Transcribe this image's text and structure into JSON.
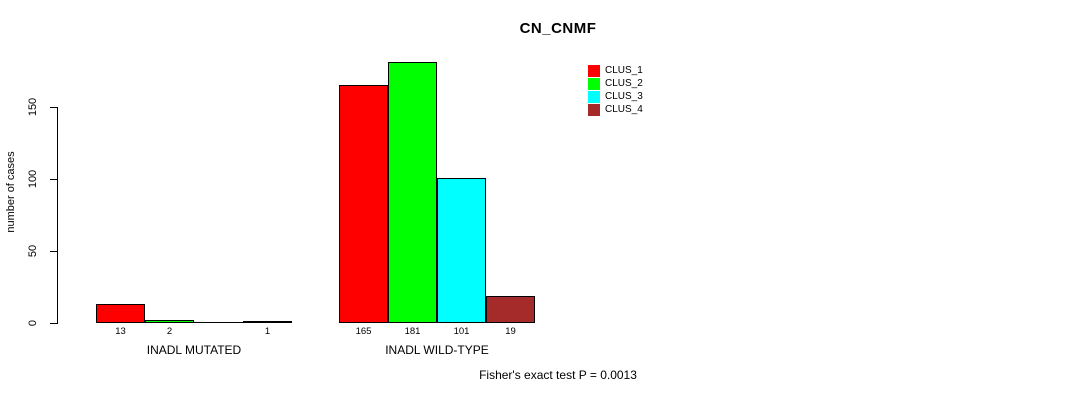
{
  "chart_data": {
    "type": "bar",
    "title": "CN_CNMF",
    "xlabel": "",
    "ylabel": "number of cases",
    "ylim": [
      0,
      187
    ],
    "yticks": [
      0,
      50,
      100,
      150
    ],
    "ytick_labels": [
      "0",
      "50",
      "100",
      "150"
    ],
    "grid": false,
    "legend_position": "top-right-inside",
    "background_color": "#FFFFFF",
    "axis_color": "#000000",
    "bar_border_color": "#000000",
    "series": [
      {
        "name": "CLUS_1",
        "color": "#FF0000"
      },
      {
        "name": "CLUS_2",
        "color": "#00FF00"
      },
      {
        "name": "CLUS_3",
        "color": "#00FFFF"
      },
      {
        "name": "CLUS_4",
        "color": "#A52A2A"
      }
    ],
    "groups": [
      {
        "label": "INADL MUTATED",
        "values": [
          13,
          2,
          0,
          1
        ],
        "value_labels": [
          "13",
          "2",
          "",
          "1"
        ]
      },
      {
        "label": "INADL WILD-TYPE",
        "values": [
          165,
          181,
          101,
          19
        ],
        "value_labels": [
          "165",
          "181",
          "101",
          "19"
        ]
      }
    ],
    "annotation": "Fisher's exact test P = 0.0013"
  }
}
